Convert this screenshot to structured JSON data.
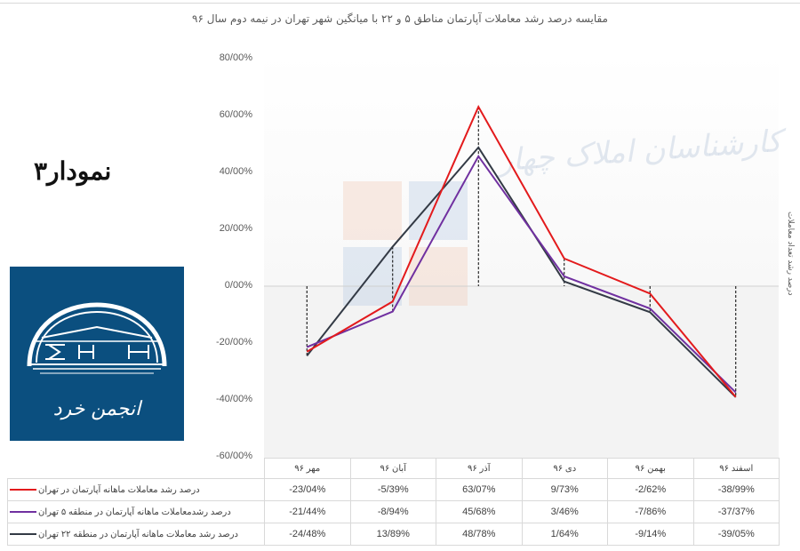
{
  "title": "مقایسه درصد رشد معاملات آپارتمان مناطق ۵ و ۲۲ با میانگین شهر تهران در نیمه دوم سال ۹۶",
  "chart_number_label": "نمودار۳",
  "logo": {
    "text": "انجمن خرد",
    "background": "#0b4f7f"
  },
  "watermark": {
    "text": "کارشناسان املاک چهار"
  },
  "y_axis_title": "درصد رشد تعداد معاملات",
  "y_ticks": [
    "80/00%",
    "60/00%",
    "40/00%",
    "20/00%",
    "0/00%",
    "-20/00%",
    "-40/00%",
    "-60/00%"
  ],
  "table": {
    "months": [
      "مهر ۹۶",
      "آبان ۹۶",
      "آذر ۹۶",
      "دی ۹۶",
      "بهمن ۹۶",
      "اسفند ۹۶"
    ],
    "rows": [
      {
        "label": "درصد رشد معاملات ماهانه آپارتمان در تهران",
        "color": "#e31a1c",
        "values": [
          "-23/04%",
          "-5/39%",
          "63/07%",
          "9/73%",
          "-2/62%",
          "-38/99%"
        ]
      },
      {
        "label": "درصد رشدمعاملات ماهانه آپارتمان در منطقه ۵ تهران",
        "color": "#7030a0",
        "values": [
          "-21/44%",
          "-8/94%",
          "45/68%",
          "3/46%",
          "-7/86%",
          "-37/37%"
        ]
      },
      {
        "label": "درصد رشد معاملات ماهانه آپارتمان در منطقه ۲۲ تهران",
        "color": "#333a45",
        "values": [
          "-24/48%",
          "13/89%",
          "48/78%",
          "1/64%",
          "-9/14%",
          "-39/05%"
        ]
      }
    ]
  },
  "chart_data": {
    "type": "line",
    "title": "مقایسه درصد رشد معاملات آپارتمان مناطق ۵ و ۲۲ با میانگین شهر تهران در نیمه دوم سال ۹۶",
    "categories": [
      "مهر ۹۶",
      "آبان ۹۶",
      "آذر ۹۶",
      "دی ۹۶",
      "بهمن ۹۶",
      "اسفند ۹۶"
    ],
    "series": [
      {
        "name": "درصد رشد معاملات ماهانه آپارتمان در تهران",
        "color": "#e31a1c",
        "values": [
          -23.04,
          -5.39,
          63.07,
          9.73,
          -2.62,
          -38.99
        ]
      },
      {
        "name": "درصد رشدمعاملات ماهانه آپارتمان در منطقه ۵ تهران",
        "color": "#7030a0",
        "values": [
          -21.44,
          -8.94,
          45.68,
          3.46,
          -7.86,
          -37.37
        ]
      },
      {
        "name": "درصد رشد معاملات ماهانه آپارتمان در منطقه ۲۲ تهران",
        "color": "#333a45",
        "values": [
          -24.48,
          13.89,
          48.78,
          1.64,
          -9.14,
          -39.05
        ]
      }
    ],
    "xlabel": "",
    "ylabel": "درصد رشد تعداد معاملات",
    "ylim": [
      -60,
      80
    ],
    "y_tick_step": 20,
    "grid": false,
    "drop_lines": true,
    "legend_position": "data-table"
  }
}
